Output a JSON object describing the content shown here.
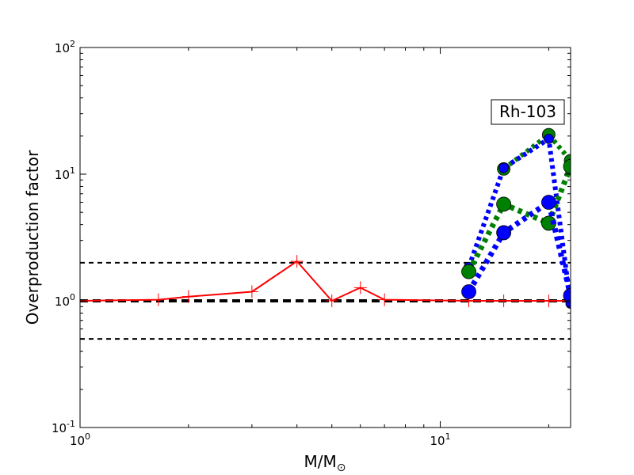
{
  "chart_data": {
    "type": "line",
    "xscale": "log",
    "yscale": "log",
    "xlim": [
      1,
      23
    ],
    "ylim": [
      0.1,
      100
    ],
    "xlabel": "M/M",
    "xlabel_sub": "⊙",
    "ylabel": "Overproduction factor",
    "grid": false,
    "annotation": "Rh-103",
    "x_ticks": [
      {
        "value": 1,
        "base": "10",
        "exp": "0"
      },
      {
        "value": 10,
        "base": "10",
        "exp": "1"
      }
    ],
    "y_ticks": [
      {
        "value": 0.1,
        "base": "10",
        "exp": "-1"
      },
      {
        "value": 1,
        "base": "10",
        "exp": "0"
      },
      {
        "value": 10,
        "base": "10",
        "exp": "1"
      },
      {
        "value": 100,
        "base": "10",
        "exp": "2"
      }
    ],
    "reference_lines": [
      {
        "y": 2.0,
        "style": "dashed",
        "width": 2,
        "color": "#000000"
      },
      {
        "y": 1.0,
        "style": "dashed",
        "width": 4,
        "color": "#000000"
      },
      {
        "y": 0.5,
        "style": "dashed",
        "width": 2,
        "color": "#000000"
      }
    ],
    "series": [
      {
        "color": "#ff0000",
        "line_style": "solid",
        "line_width": 2,
        "marker": "plus",
        "x": [
          1,
          1.65,
          2,
          3,
          4,
          5,
          6,
          7,
          12,
          15,
          20,
          23
        ],
        "y": [
          1.0,
          1.02,
          1.08,
          1.18,
          2.05,
          1.0,
          1.27,
          1.02,
          1.0,
          1.0,
          1.0,
          1.0
        ]
      },
      {
        "color": "#008000",
        "line_style": "dotted",
        "line_width": 6,
        "marker": "circle",
        "marker_size": 8,
        "x": [
          15,
          20,
          23
        ],
        "y": [
          11.0,
          20.5,
          12.8
        ]
      },
      {
        "color": "#0000ff",
        "line_style": "dotted",
        "line_width": 6,
        "marker": "circle",
        "marker_size": 6,
        "x": [
          12,
          15,
          20,
          23
        ],
        "y": [
          1.85,
          11.2,
          19.0,
          0.95
        ]
      },
      {
        "color": "#008000",
        "line_style": "dotted",
        "line_width": 7,
        "marker": "circle",
        "marker_size": 9,
        "x": [
          12,
          15,
          20,
          23
        ],
        "y": [
          1.7,
          5.8,
          4.1,
          11.5
        ]
      },
      {
        "color": "#0000ff",
        "line_style": "dotted",
        "line_width": 7,
        "marker": "circle",
        "marker_size": 9,
        "x": [
          12,
          15,
          20,
          23
        ],
        "y": [
          1.18,
          3.45,
          6.0,
          1.1
        ]
      }
    ]
  }
}
